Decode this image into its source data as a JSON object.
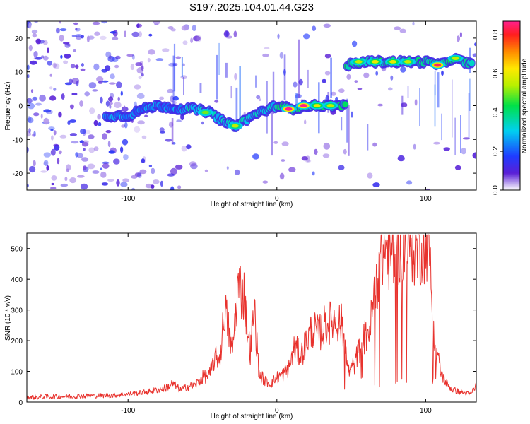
{
  "title": "S197.2025.104.01.44.G23",
  "chart_data": [
    {
      "type": "heatmap",
      "xlabel": "Height of straight line (km)",
      "ylabel": "Frequency (Hz)",
      "xlim": [
        -168,
        134
      ],
      "ylim": [
        -25,
        25
      ],
      "xticks": [
        -100,
        0,
        100
      ],
      "yticks": [
        -20,
        -10,
        0,
        10,
        20
      ],
      "colorbar": {
        "label": "Normalized spectral amplitude",
        "range": [
          0,
          0.87
        ],
        "ticks": [
          0.0,
          0.2,
          0.4,
          0.6,
          0.8
        ]
      },
      "ridge": [
        {
          "x": -115,
          "y": -3
        },
        {
          "x": -100,
          "y": -3
        },
        {
          "x": -90,
          "y": -1
        },
        {
          "x": -80,
          "y": 0
        },
        {
          "x": -65,
          "y": -1
        },
        {
          "x": -55,
          "y": -1
        },
        {
          "x": -45,
          "y": -2
        },
        {
          "x": -35,
          "y": -5
        },
        {
          "x": -28,
          "y": -6
        },
        {
          "x": -20,
          "y": -4
        },
        {
          "x": -12,
          "y": -2
        },
        {
          "x": -5,
          "y": -1
        },
        {
          "x": 0,
          "y": 0
        },
        {
          "x": 10,
          "y": -1
        },
        {
          "x": 20,
          "y": 0
        },
        {
          "x": 30,
          "y": 0
        },
        {
          "x": 45,
          "y": 0
        },
        {
          "x": 47,
          "y": 12
        },
        {
          "x": 60,
          "y": 13
        },
        {
          "x": 75,
          "y": 13
        },
        {
          "x": 90,
          "y": 13
        },
        {
          "x": 100,
          "y": 13
        },
        {
          "x": 110,
          "y": 12
        },
        {
          "x": 118,
          "y": 14
        },
        {
          "x": 125,
          "y": 13
        },
        {
          "x": 132,
          "y": 12
        }
      ],
      "peaks": [
        {
          "x": 8,
          "y": -1,
          "v": 0.87
        },
        {
          "x": 18,
          "y": 0,
          "v": 0.87
        },
        {
          "x": 27,
          "y": 0,
          "v": 0.6
        },
        {
          "x": 36,
          "y": 0,
          "v": 0.55
        },
        {
          "x": -28,
          "y": -6,
          "v": 0.55
        },
        {
          "x": -48,
          "y": -2,
          "v": 0.5
        },
        {
          "x": 55,
          "y": 13,
          "v": 0.55
        },
        {
          "x": 66,
          "y": 13,
          "v": 0.6
        },
        {
          "x": 78,
          "y": 13,
          "v": 0.6
        },
        {
          "x": 88,
          "y": 13,
          "v": 0.55
        },
        {
          "x": 108,
          "y": 12,
          "v": 0.85
        },
        {
          "x": 120,
          "y": 14,
          "v": 0.55
        }
      ]
    },
    {
      "type": "line",
      "xlabel": "Height of straight line (km)",
      "ylabel": "SNR (10 * v/v)",
      "xlim": [
        -168,
        134
      ],
      "ylim": [
        0,
        550
      ],
      "xticks": [
        -100,
        0,
        100
      ],
      "yticks": [
        0,
        100,
        200,
        300,
        400,
        500
      ],
      "color": "#e8322d",
      "series": [
        {
          "x": [
            -168,
            -150,
            -130,
            -110,
            -95,
            -85,
            -75,
            -70,
            -65,
            -60,
            -55,
            -50,
            -45,
            -42,
            -38,
            -35,
            -30,
            -26,
            -22,
            -18,
            -15,
            -12,
            -8,
            -4,
            0,
            4,
            8,
            12,
            16,
            20,
            24,
            28,
            32,
            36,
            40,
            44,
            48,
            52,
            56,
            60,
            63,
            66,
            70,
            74,
            78,
            82,
            86,
            90,
            94,
            98,
            102,
            106,
            110,
            114,
            118,
            122,
            126,
            130,
            134
          ],
          "y": [
            15,
            18,
            20,
            22,
            28,
            35,
            45,
            60,
            40,
            50,
            55,
            80,
            90,
            140,
            150,
            310,
            160,
            380,
            350,
            160,
            300,
            90,
            70,
            60,
            80,
            90,
            110,
            180,
            150,
            200,
            240,
            220,
            250,
            260,
            270,
            250,
            100,
            120,
            180,
            220,
            250,
            380,
            480,
            500,
            470,
            520,
            510,
            530,
            500,
            520,
            540,
            200,
            100,
            60,
            40,
            35,
            30,
            25,
            55
          ]
        }
      ]
    }
  ]
}
